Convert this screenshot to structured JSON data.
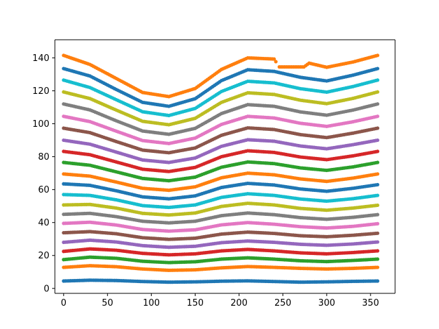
{
  "chart_data": {
    "type": "scatter",
    "title": "",
    "xlabel": "",
    "ylabel": "",
    "xlim": [
      -10,
      378
    ],
    "ylim": [
      -3,
      151
    ],
    "xticks": [
      0,
      50,
      100,
      150,
      200,
      250,
      300,
      350
    ],
    "yticks": [
      0,
      20,
      40,
      60,
      80,
      100,
      120,
      140
    ],
    "grid": false,
    "legend": "none",
    "x_step": 2,
    "series": [
      {
        "color": "#1f77b4",
        "y": [
          [
            0,
            4.5
          ],
          [
            30,
            5.0
          ],
          [
            60,
            4.8
          ],
          [
            90,
            4.2
          ],
          [
            120,
            3.8
          ],
          [
            150,
            4.0
          ],
          [
            180,
            4.4
          ],
          [
            210,
            4.6
          ],
          [
            240,
            4.2
          ],
          [
            270,
            3.8
          ],
          [
            300,
            4.0
          ],
          [
            330,
            4.3
          ],
          [
            358,
            4.5
          ]
        ]
      },
      {
        "color": "#ff7f0e",
        "y": [
          [
            0,
            12.8
          ],
          [
            30,
            13.8
          ],
          [
            60,
            13.2
          ],
          [
            90,
            11.8
          ],
          [
            120,
            11.0
          ],
          [
            150,
            11.3
          ],
          [
            180,
            12.5
          ],
          [
            210,
            13.3
          ],
          [
            240,
            12.8
          ],
          [
            270,
            12.2
          ],
          [
            300,
            11.8
          ],
          [
            330,
            12.2
          ],
          [
            358,
            12.8
          ]
        ]
      },
      {
        "color": "#2ca02c",
        "y": [
          [
            0,
            17.5
          ],
          [
            30,
            19.0
          ],
          [
            60,
            18.3
          ],
          [
            90,
            16.5
          ],
          [
            120,
            15.7
          ],
          [
            150,
            16.2
          ],
          [
            180,
            17.8
          ],
          [
            210,
            18.6
          ],
          [
            240,
            17.8
          ],
          [
            270,
            16.8
          ],
          [
            300,
            16.3
          ],
          [
            330,
            17.0
          ],
          [
            358,
            17.8
          ]
        ]
      },
      {
        "color": "#d62728",
        "y": [
          [
            0,
            22.5
          ],
          [
            30,
            24.0
          ],
          [
            60,
            23.2
          ],
          [
            90,
            21.3
          ],
          [
            120,
            20.4
          ],
          [
            150,
            21.0
          ],
          [
            180,
            22.8
          ],
          [
            210,
            23.7
          ],
          [
            240,
            22.8
          ],
          [
            270,
            21.6
          ],
          [
            300,
            21.0
          ],
          [
            330,
            21.8
          ],
          [
            358,
            22.8
          ]
        ]
      },
      {
        "color": "#9467bd",
        "y": [
          [
            0,
            28.0
          ],
          [
            30,
            29.3
          ],
          [
            60,
            28.2
          ],
          [
            90,
            26.0
          ],
          [
            120,
            25.0
          ],
          [
            150,
            25.6
          ],
          [
            180,
            27.8
          ],
          [
            210,
            28.8
          ],
          [
            240,
            28.0
          ],
          [
            270,
            26.8
          ],
          [
            300,
            26.2
          ],
          [
            330,
            27.0
          ],
          [
            358,
            28.2
          ]
        ]
      },
      {
        "color": "#8c564b",
        "y": [
          [
            0,
            33.8
          ],
          [
            30,
            34.5
          ],
          [
            60,
            33.2
          ],
          [
            90,
            30.8
          ],
          [
            120,
            29.8
          ],
          [
            150,
            30.5
          ],
          [
            180,
            33.0
          ],
          [
            210,
            34.2
          ],
          [
            240,
            33.4
          ],
          [
            270,
            32.0
          ],
          [
            300,
            31.4
          ],
          [
            330,
            32.3
          ],
          [
            358,
            33.5
          ]
        ]
      },
      {
        "color": "#e377c2",
        "y": [
          [
            0,
            39.5
          ],
          [
            30,
            40.2
          ],
          [
            60,
            38.5
          ],
          [
            90,
            35.8
          ],
          [
            120,
            34.8
          ],
          [
            150,
            35.6
          ],
          [
            180,
            38.6
          ],
          [
            210,
            40.0
          ],
          [
            240,
            39.0
          ],
          [
            270,
            37.5
          ],
          [
            300,
            36.7
          ],
          [
            330,
            37.7
          ],
          [
            358,
            39.3
          ]
        ]
      },
      {
        "color": "#7f7f7f",
        "y": [
          [
            0,
            45.0
          ],
          [
            30,
            45.6
          ],
          [
            60,
            43.6
          ],
          [
            90,
            40.8
          ],
          [
            120,
            39.8
          ],
          [
            150,
            40.8
          ],
          [
            180,
            44.2
          ],
          [
            210,
            45.8
          ],
          [
            240,
            44.8
          ],
          [
            270,
            43.0
          ],
          [
            300,
            42.0
          ],
          [
            330,
            43.2
          ],
          [
            358,
            44.8
          ]
        ]
      },
      {
        "color": "#bcbd22",
        "y": [
          [
            0,
            50.7
          ],
          [
            30,
            51.0
          ],
          [
            60,
            48.8
          ],
          [
            90,
            45.6
          ],
          [
            120,
            44.6
          ],
          [
            150,
            45.8
          ],
          [
            180,
            49.8
          ],
          [
            210,
            51.7
          ],
          [
            240,
            50.7
          ],
          [
            270,
            48.6
          ],
          [
            300,
            47.5
          ],
          [
            330,
            48.8
          ],
          [
            358,
            50.5
          ]
        ]
      },
      {
        "color": "#17becf",
        "y": [
          [
            0,
            57.0
          ],
          [
            30,
            56.5
          ],
          [
            60,
            53.8
          ],
          [
            90,
            50.3
          ],
          [
            120,
            49.2
          ],
          [
            150,
            50.7
          ],
          [
            180,
            55.3
          ],
          [
            210,
            57.5
          ],
          [
            240,
            56.5
          ],
          [
            270,
            54.3
          ],
          [
            300,
            53.0
          ],
          [
            330,
            54.5
          ],
          [
            358,
            56.5
          ]
        ]
      },
      {
        "color": "#1f77b4",
        "y": [
          [
            0,
            63.5
          ],
          [
            30,
            62.6
          ],
          [
            60,
            59.3
          ],
          [
            90,
            55.6
          ],
          [
            120,
            54.4
          ],
          [
            150,
            56.2
          ],
          [
            180,
            61.3
          ],
          [
            210,
            63.8
          ],
          [
            240,
            62.8
          ],
          [
            270,
            60.4
          ],
          [
            300,
            59.0
          ],
          [
            330,
            60.8
          ],
          [
            358,
            63.0
          ]
        ]
      },
      {
        "color": "#ff7f0e",
        "y": [
          [
            0,
            69.5
          ],
          [
            30,
            68.2
          ],
          [
            60,
            64.6
          ],
          [
            90,
            60.8
          ],
          [
            120,
            59.6
          ],
          [
            150,
            61.7
          ],
          [
            180,
            67.2
          ],
          [
            210,
            70.0
          ],
          [
            240,
            69.0
          ],
          [
            270,
            66.5
          ],
          [
            300,
            65.0
          ],
          [
            330,
            67.0
          ],
          [
            358,
            69.5
          ]
        ]
      },
      {
        "color": "#2ca02c",
        "y": [
          [
            0,
            76.5
          ],
          [
            30,
            74.8
          ],
          [
            60,
            70.8
          ],
          [
            90,
            66.8
          ],
          [
            120,
            65.4
          ],
          [
            150,
            67.6
          ],
          [
            180,
            73.6
          ],
          [
            210,
            76.8
          ],
          [
            240,
            75.8
          ],
          [
            270,
            73.2
          ],
          [
            300,
            71.7
          ],
          [
            330,
            73.8
          ],
          [
            358,
            76.5
          ]
        ]
      },
      {
        "color": "#d62728",
        "y": [
          [
            0,
            83.2
          ],
          [
            30,
            81.2
          ],
          [
            60,
            76.8
          ],
          [
            90,
            72.4
          ],
          [
            120,
            71.0
          ],
          [
            150,
            73.5
          ],
          [
            180,
            80.0
          ],
          [
            210,
            83.6
          ],
          [
            240,
            82.6
          ],
          [
            270,
            79.8
          ],
          [
            300,
            78.2
          ],
          [
            330,
            80.5
          ],
          [
            358,
            83.2
          ]
        ]
      },
      {
        "color": "#9467bd",
        "y": [
          [
            0,
            90.0
          ],
          [
            30,
            87.6
          ],
          [
            60,
            82.8
          ],
          [
            90,
            78.0
          ],
          [
            120,
            76.5
          ],
          [
            150,
            79.2
          ],
          [
            180,
            86.3
          ],
          [
            210,
            90.3
          ],
          [
            240,
            89.4
          ],
          [
            270,
            86.5
          ],
          [
            300,
            84.8
          ],
          [
            330,
            87.3
          ],
          [
            358,
            90.0
          ]
        ]
      },
      {
        "color": "#8c564b",
        "y": [
          [
            0,
            97.3
          ],
          [
            30,
            94.6
          ],
          [
            60,
            89.2
          ],
          [
            90,
            84.0
          ],
          [
            120,
            82.4
          ],
          [
            150,
            85.3
          ],
          [
            180,
            93.0
          ],
          [
            210,
            97.5
          ],
          [
            240,
            96.5
          ],
          [
            270,
            93.4
          ],
          [
            300,
            91.6
          ],
          [
            330,
            94.3
          ],
          [
            358,
            97.3
          ]
        ]
      },
      {
        "color": "#e377c2",
        "y": [
          [
            0,
            104.5
          ],
          [
            30,
            101.3
          ],
          [
            60,
            95.5
          ],
          [
            90,
            89.8
          ],
          [
            120,
            88.0
          ],
          [
            150,
            91.3
          ],
          [
            180,
            99.6
          ],
          [
            210,
            104.5
          ],
          [
            240,
            103.5
          ],
          [
            270,
            100.3
          ],
          [
            300,
            98.4
          ],
          [
            330,
            101.2
          ],
          [
            358,
            104.5
          ]
        ]
      },
      {
        "color": "#7f7f7f",
        "y": [
          [
            0,
            112.0
          ],
          [
            30,
            108.4
          ],
          [
            60,
            101.8
          ],
          [
            90,
            95.6
          ],
          [
            120,
            93.6
          ],
          [
            150,
            97.2
          ],
          [
            180,
            106.2
          ],
          [
            210,
            111.6
          ],
          [
            240,
            110.6
          ],
          [
            270,
            107.2
          ],
          [
            300,
            105.2
          ],
          [
            330,
            108.3
          ],
          [
            358,
            112.0
          ]
        ]
      },
      {
        "color": "#bcbd22",
        "y": [
          [
            0,
            119.3
          ],
          [
            30,
            115.3
          ],
          [
            60,
            108.3
          ],
          [
            90,
            101.5
          ],
          [
            120,
            99.4
          ],
          [
            150,
            103.3
          ],
          [
            180,
            113.0
          ],
          [
            210,
            118.8
          ],
          [
            240,
            117.8
          ],
          [
            270,
            114.3
          ],
          [
            300,
            112.2
          ],
          [
            330,
            115.4
          ],
          [
            358,
            119.3
          ]
        ]
      },
      {
        "color": "#17becf",
        "y": [
          [
            0,
            126.5
          ],
          [
            30,
            122.0
          ],
          [
            60,
            114.6
          ],
          [
            90,
            107.3
          ],
          [
            120,
            105.0
          ],
          [
            150,
            109.3
          ],
          [
            180,
            119.6
          ],
          [
            210,
            125.8
          ],
          [
            240,
            124.8
          ],
          [
            270,
            121.3
          ],
          [
            300,
            119.2
          ],
          [
            330,
            122.6
          ],
          [
            358,
            126.5
          ]
        ]
      },
      {
        "color": "#1f77b4",
        "y": [
          [
            0,
            133.5
          ],
          [
            30,
            129.0
          ],
          [
            60,
            120.8
          ],
          [
            90,
            113.0
          ],
          [
            120,
            110.6
          ],
          [
            150,
            115.2
          ],
          [
            180,
            126.2
          ],
          [
            210,
            132.8
          ],
          [
            240,
            131.8
          ],
          [
            270,
            128.2
          ],
          [
            300,
            126.0
          ],
          [
            330,
            129.5
          ],
          [
            358,
            133.5
          ]
        ]
      },
      {
        "color": "#ff7f0e",
        "gap": [
          243,
          275
        ],
        "y": [
          [
            0,
            141.5
          ],
          [
            30,
            136.0
          ],
          [
            60,
            127.5
          ],
          [
            90,
            119.0
          ],
          [
            120,
            116.5
          ],
          [
            150,
            121.4
          ],
          [
            180,
            133.0
          ],
          [
            210,
            140.0
          ],
          [
            240,
            139.3
          ],
          [
            246,
            134.5
          ],
          [
            274,
            134.5
          ],
          [
            280,
            136.8
          ],
          [
            300,
            134.3
          ],
          [
            330,
            137.5
          ],
          [
            358,
            141.5
          ]
        ]
      }
    ]
  }
}
